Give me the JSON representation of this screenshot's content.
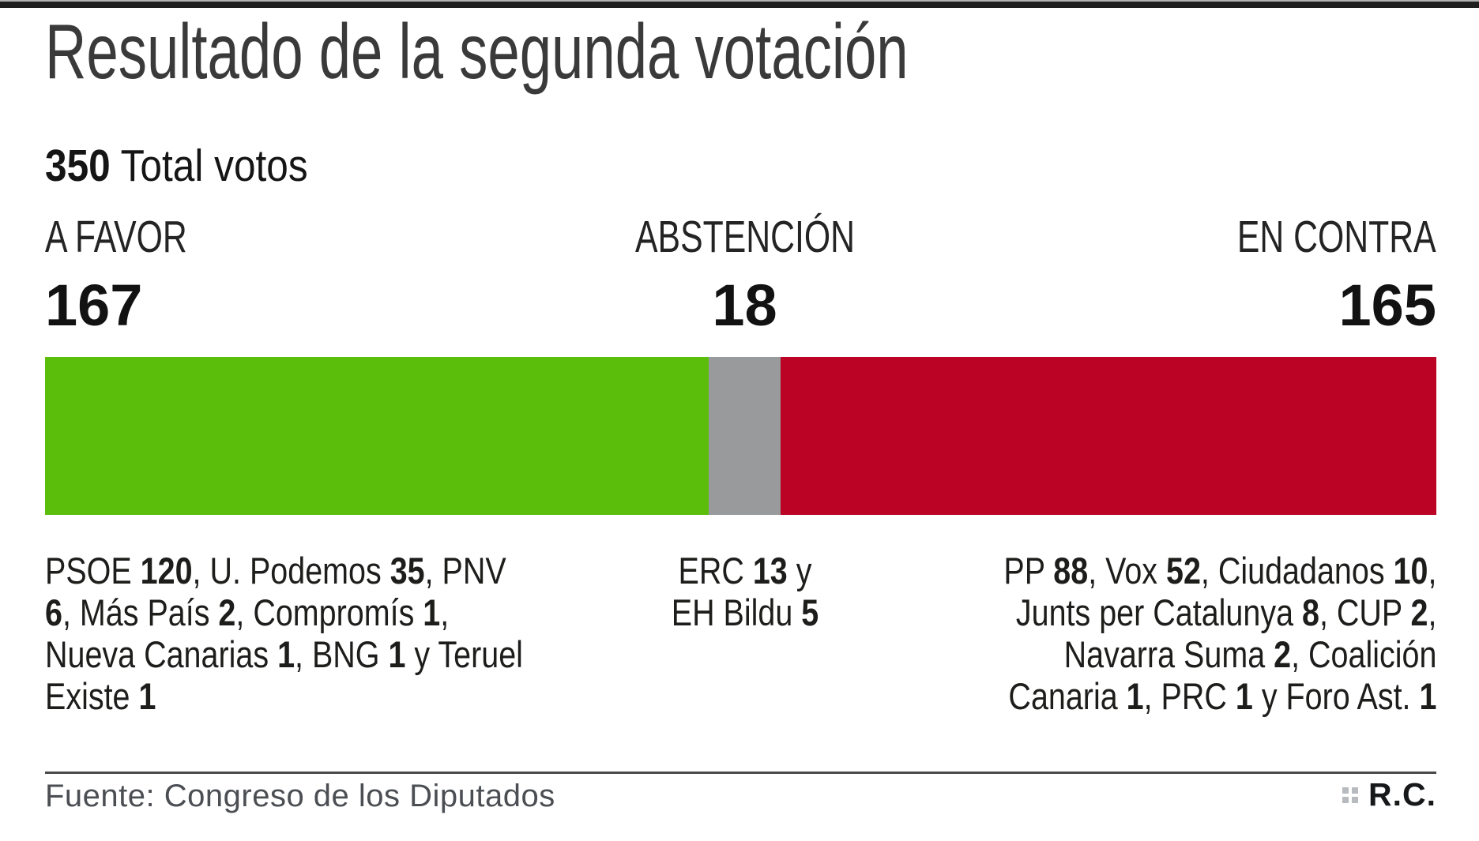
{
  "chart_data": {
    "type": "bar",
    "subtype": "horizontal-stacked-single-bar",
    "title": "Resultado de la segunda votación",
    "total_votes": 350,
    "categories": [
      "A FAVOR",
      "ABSTENCIÓN",
      "EN CONTRA"
    ],
    "values": [
      167,
      18,
      165
    ],
    "colors": [
      "#5abe0a",
      "#999a9b",
      "#bb0326"
    ],
    "legend_position": "none",
    "grid": false,
    "breakdown": {
      "a_favor": [
        {
          "party": "PSOE",
          "votes": 120
        },
        {
          "party": "U. Podemos",
          "votes": 35
        },
        {
          "party": "PNV",
          "votes": 6
        },
        {
          "party": "Más País",
          "votes": 2
        },
        {
          "party": "Compromís",
          "votes": 1
        },
        {
          "party": "Nueva Canarias",
          "votes": 1
        },
        {
          "party": "BNG",
          "votes": 1
        },
        {
          "party": "Teruel Existe",
          "votes": 1
        }
      ],
      "abstencion": [
        {
          "party": "ERC",
          "votes": 13
        },
        {
          "party": "EH Bildu",
          "votes": 5
        }
      ],
      "en_contra": [
        {
          "party": "PP",
          "votes": 88
        },
        {
          "party": "Vox",
          "votes": 52
        },
        {
          "party": "Ciudadanos",
          "votes": 10
        },
        {
          "party": "Junts per Catalunya",
          "votes": 8
        },
        {
          "party": "CUP",
          "votes": 2
        },
        {
          "party": "Navarra Suma",
          "votes": 2
        },
        {
          "party": "Coalición Canaria",
          "votes": 1
        },
        {
          "party": "PRC",
          "votes": 1
        },
        {
          "party": "Foro Ast.",
          "votes": 1
        }
      ]
    },
    "source": "Fuente: Congreso de los Diputados"
  },
  "ui": {
    "total_suffix": " Total votos"
  },
  "breakdown_blocks": {
    "favor": [
      [
        {
          "t": "PSOE ",
          "b": false
        },
        {
          "t": "120",
          "b": true
        },
        {
          "t": ", U. Podemos ",
          "b": false
        },
        {
          "t": "35",
          "b": true
        },
        {
          "t": ", PNV",
          "b": false
        }
      ],
      [
        {
          "t": "6",
          "b": true
        },
        {
          "t": ", Más País ",
          "b": false
        },
        {
          "t": "2",
          "b": true
        },
        {
          "t": ", Compromís ",
          "b": false
        },
        {
          "t": "1",
          "b": true
        },
        {
          "t": ",",
          "b": false
        }
      ],
      [
        {
          "t": "Nueva Canarias ",
          "b": false
        },
        {
          "t": "1",
          "b": true
        },
        {
          "t": ", BNG ",
          "b": false
        },
        {
          "t": "1",
          "b": true
        },
        {
          "t": " y Teruel",
          "b": false
        }
      ],
      [
        {
          "t": "Existe ",
          "b": false
        },
        {
          "t": "1",
          "b": true
        }
      ]
    ],
    "abstencion": [
      [
        {
          "t": "ERC ",
          "b": false
        },
        {
          "t": "13",
          "b": true
        },
        {
          "t": " y",
          "b": false
        }
      ],
      [
        {
          "t": "EH Bildu ",
          "b": false
        },
        {
          "t": "5",
          "b": true
        }
      ]
    ],
    "contra": [
      [
        {
          "t": "PP ",
          "b": false
        },
        {
          "t": "88",
          "b": true
        },
        {
          "t": ", Vox ",
          "b": false
        },
        {
          "t": "52",
          "b": true
        },
        {
          "t": ", Ciudadanos ",
          "b": false
        },
        {
          "t": "10",
          "b": true
        },
        {
          "t": ",",
          "b": false
        }
      ],
      [
        {
          "t": "Junts per Catalunya ",
          "b": false
        },
        {
          "t": "8",
          "b": true
        },
        {
          "t": ", CUP ",
          "b": false
        },
        {
          "t": "2",
          "b": true
        },
        {
          "t": ",",
          "b": false
        }
      ],
      [
        {
          "t": "Navarra Suma ",
          "b": false
        },
        {
          "t": "2",
          "b": true
        },
        {
          "t": ", Coalición",
          "b": false
        }
      ],
      [
        {
          "t": "Canaria ",
          "b": false
        },
        {
          "t": "1",
          "b": true
        },
        {
          "t": ", PRC ",
          "b": false
        },
        {
          "t": "1",
          "b": true
        },
        {
          "t": " y Foro Ast. ",
          "b": false
        },
        {
          "t": "1",
          "b": true
        }
      ]
    ]
  },
  "footer": {
    "credit": "R.C.",
    "credit_icon": "four-squares-grid-icon"
  }
}
